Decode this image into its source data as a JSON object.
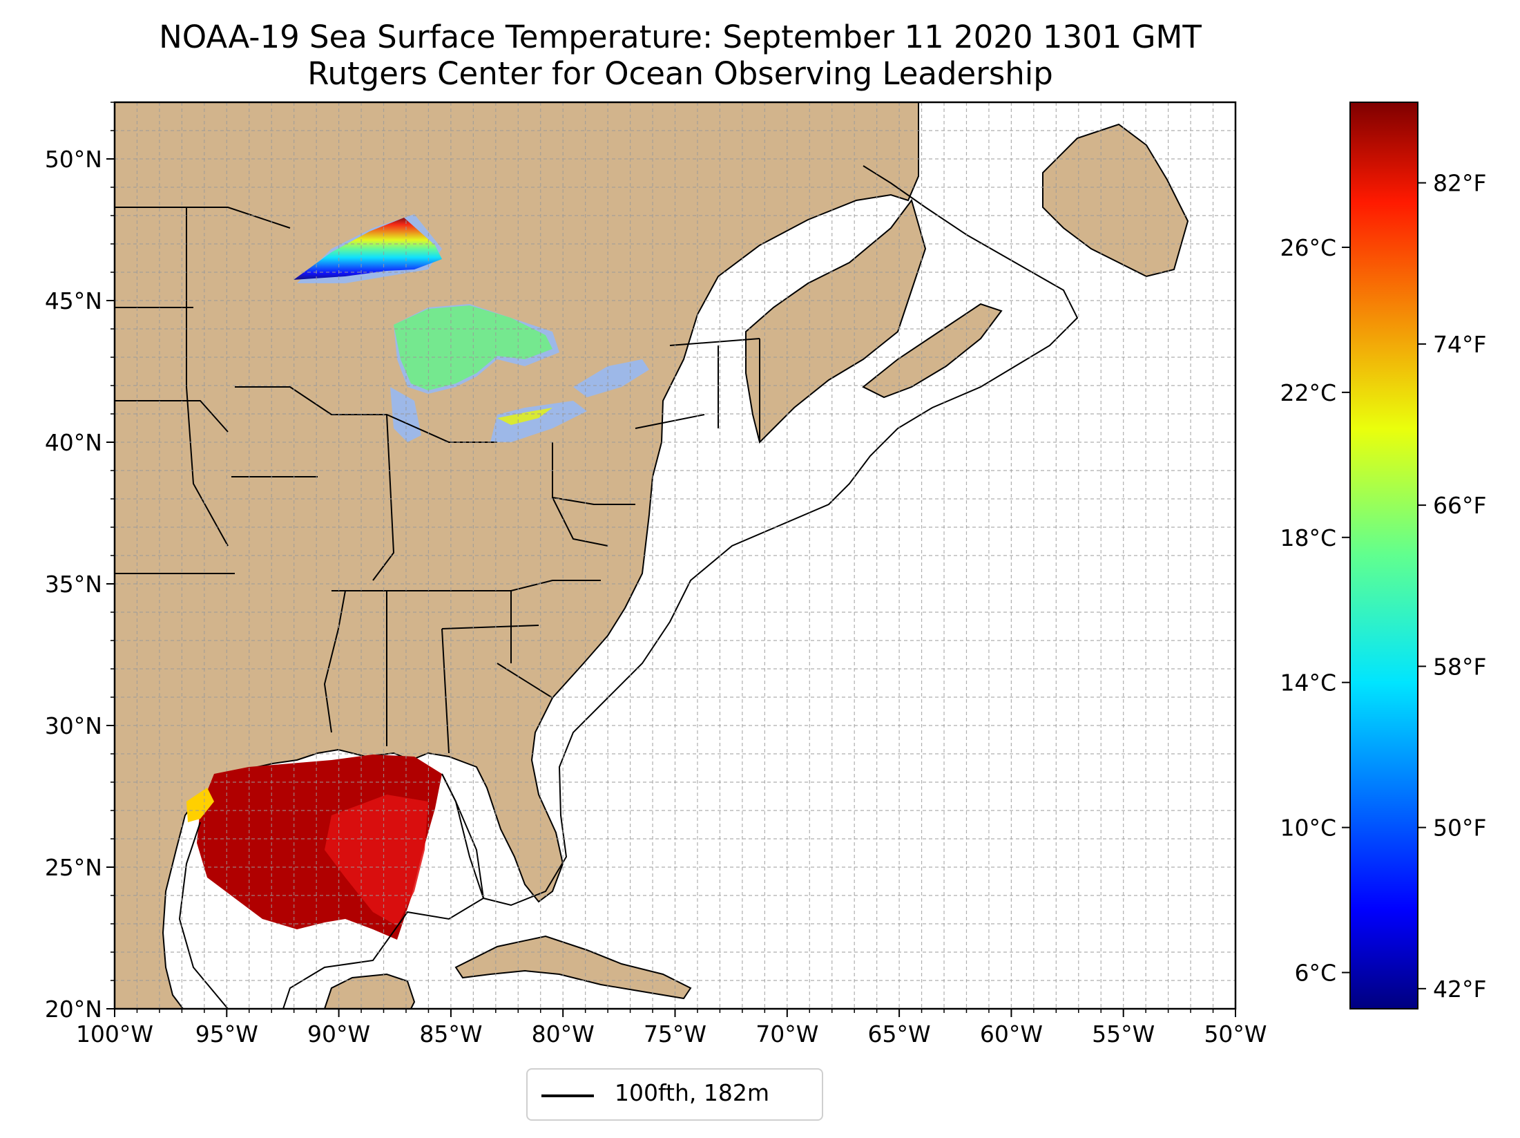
{
  "title": {
    "line1": "NOAA-19 Sea Surface Temperature: September 11 2020 1301 GMT",
    "line2": "Rutgers Center for Ocean Observing Leadership"
  },
  "map": {
    "lon_range": [
      -100,
      -50
    ],
    "lat_range": [
      20,
      52
    ],
    "x_ticks": [
      {
        "lon": -100,
        "label": "100°W"
      },
      {
        "lon": -95,
        "label": "95°W"
      },
      {
        "lon": -90,
        "label": "90°W"
      },
      {
        "lon": -85,
        "label": "85°W"
      },
      {
        "lon": -80,
        "label": "80°W"
      },
      {
        "lon": -75,
        "label": "75°W"
      },
      {
        "lon": -70,
        "label": "70°W"
      },
      {
        "lon": -65,
        "label": "65°W"
      },
      {
        "lon": -60,
        "label": "60°W"
      },
      {
        "lon": -55,
        "label": "55°W"
      },
      {
        "lon": -50,
        "label": "50°W"
      }
    ],
    "y_ticks": [
      {
        "lat": 20,
        "label": "20°N"
      },
      {
        "lat": 25,
        "label": "25°N"
      },
      {
        "lat": 30,
        "label": "30°N"
      },
      {
        "lat": 35,
        "label": "35°N"
      },
      {
        "lat": 40,
        "label": "40°N"
      },
      {
        "lat": 45,
        "label": "45°N"
      },
      {
        "lat": 50,
        "label": "50°N"
      }
    ],
    "grid": "dashed, every 1 degree",
    "land_color": "#d2b48c",
    "lake_color": "#9db8e8",
    "ocean_color": "#ffffff"
  },
  "colorbar": {
    "cmap": "jet",
    "range_c": [
      5,
      30
    ],
    "celsius_ticks": [
      {
        "value": 6,
        "label": "6°C"
      },
      {
        "value": 10,
        "label": "10°C"
      },
      {
        "value": 14,
        "label": "14°C"
      },
      {
        "value": 18,
        "label": "18°C"
      },
      {
        "value": 22,
        "label": "22°C"
      },
      {
        "value": 26,
        "label": "26°C"
      }
    ],
    "fahrenheit_ticks": [
      {
        "value": 42,
        "label": "42°F"
      },
      {
        "value": 50,
        "label": "50°F"
      },
      {
        "value": 58,
        "label": "58°F"
      },
      {
        "value": 66,
        "label": "66°F"
      },
      {
        "value": 74,
        "label": "74°F"
      },
      {
        "value": 82,
        "label": "82°F"
      }
    ]
  },
  "legend": {
    "label": "100fth, 182m"
  }
}
